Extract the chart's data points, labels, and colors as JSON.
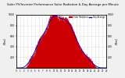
{
  "title": "Solar PV/Inverter Performance Solar Radiation & Day Average per Minute",
  "title_fontsize": 2.8,
  "bg_color": "#f0f0f0",
  "plot_bg_color": "#ffffff",
  "grid_color": "#aaaaaa",
  "fill_color": "#cc0000",
  "line_color": "#cc0000",
  "avg_line_color": "#0000cc",
  "ylabel_left": "W/m2",
  "ylabel_right": "W/m2",
  "ylim": [
    0,
    1000
  ],
  "yticks_left": [
    200,
    400,
    600,
    800,
    1000
  ],
  "yticks_right": [
    200,
    400,
    600,
    800,
    1000
  ],
  "num_points": 720,
  "legend_solar": "Solar Radiation",
  "legend_avg": "Day Average",
  "legend_solar_color": "#cc0000",
  "legend_avg_color": "#0000cc"
}
